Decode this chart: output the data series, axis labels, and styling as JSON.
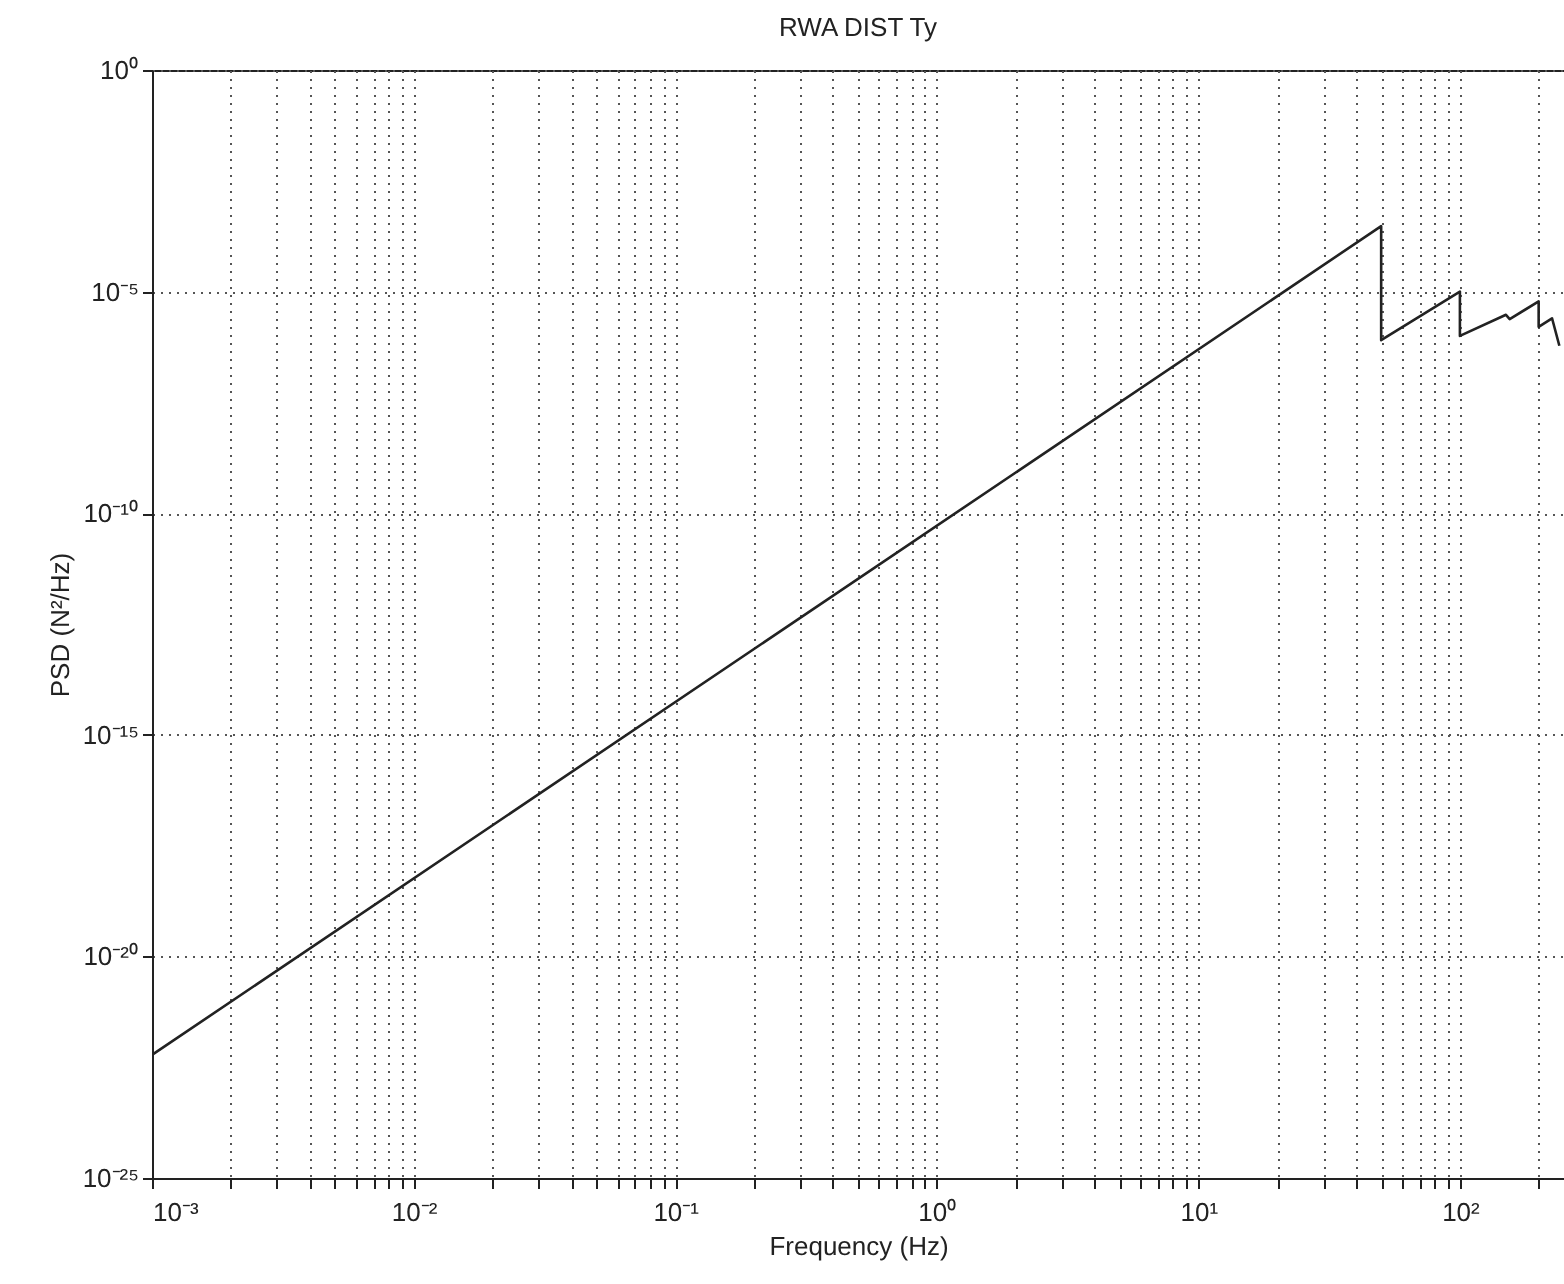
{
  "chart_data": {
    "type": "line",
    "title": "RWA DIST Ty",
    "xlabel": "Frequency (Hz)",
    "ylabel": "PSD (N²/Hz)",
    "log": "xy",
    "grid": true,
    "line_style": "solid",
    "x": [
      0.001,
      50,
      50,
      100,
      100,
      150,
      155,
      200,
      200,
      225,
      240
    ],
    "series": [
      {
        "color": "#222222",
        "values": [
          6e-23,
          0.0003,
          8e-07,
          1e-05,
          1e-06,
          3e-06,
          2.4e-06,
          6e-06,
          1.6e-06,
          2.5e-06,
          6e-07
        ]
      }
    ],
    "xlim": [
      0.001,
      250
    ],
    "xticks": [
      {
        "value": 0.001,
        "label": "10⁻³"
      },
      {
        "value": 0.002,
        "label": null
      },
      {
        "value": 0.003,
        "label": null
      },
      {
        "value": 0.004,
        "label": null
      },
      {
        "value": 0.005,
        "label": null
      },
      {
        "value": 0.006,
        "label": null
      },
      {
        "value": 0.007,
        "label": null
      },
      {
        "value": 0.008,
        "label": null
      },
      {
        "value": 0.009,
        "label": null
      },
      {
        "value": 0.01,
        "label": "10⁻²"
      },
      {
        "value": 0.02,
        "label": null
      },
      {
        "value": 0.03,
        "label": null
      },
      {
        "value": 0.04,
        "label": null
      },
      {
        "value": 0.05,
        "label": null
      },
      {
        "value": 0.06,
        "label": null
      },
      {
        "value": 0.07,
        "label": null
      },
      {
        "value": 0.08,
        "label": null
      },
      {
        "value": 0.09,
        "label": null
      },
      {
        "value": 0.1,
        "label": "10⁻¹"
      },
      {
        "value": 0.2,
        "label": null
      },
      {
        "value": 0.3,
        "label": null
      },
      {
        "value": 0.4,
        "label": null
      },
      {
        "value": 0.5,
        "label": null
      },
      {
        "value": 0.6,
        "label": null
      },
      {
        "value": 0.7,
        "label": null
      },
      {
        "value": 0.8,
        "label": null
      },
      {
        "value": 0.9,
        "label": null
      },
      {
        "value": 1,
        "label": "10⁰"
      },
      {
        "value": 2,
        "label": null
      },
      {
        "value": 3,
        "label": null
      },
      {
        "value": 4,
        "label": null
      },
      {
        "value": 5,
        "label": null
      },
      {
        "value": 6,
        "label": null
      },
      {
        "value": 7,
        "label": null
      },
      {
        "value": 8,
        "label": null
      },
      {
        "value": 9,
        "label": null
      },
      {
        "value": 10,
        "label": "10¹"
      },
      {
        "value": 20,
        "label": null
      },
      {
        "value": 30,
        "label": null
      },
      {
        "value": 40,
        "label": null
      },
      {
        "value": 50,
        "label": null
      },
      {
        "value": 60,
        "label": null
      },
      {
        "value": 70,
        "label": null
      },
      {
        "value": 80,
        "label": null
      },
      {
        "value": 90,
        "label": null
      },
      {
        "value": 100,
        "label": "10²"
      },
      {
        "value": 200,
        "label": null
      }
    ],
    "ylim": [
      1e-25,
      1
    ],
    "yticks": [
      {
        "value": 1e-25,
        "label": "10⁻²⁵"
      },
      {
        "value": 1e-20,
        "label": "10⁻²⁰"
      },
      {
        "value": 1e-15,
        "label": "10⁻¹⁵"
      },
      {
        "value": 1e-10,
        "label": "10⁻¹⁰"
      },
      {
        "value": 1e-05,
        "label": "10⁻⁵"
      },
      {
        "value": 1,
        "label": "10⁰"
      }
    ]
  }
}
